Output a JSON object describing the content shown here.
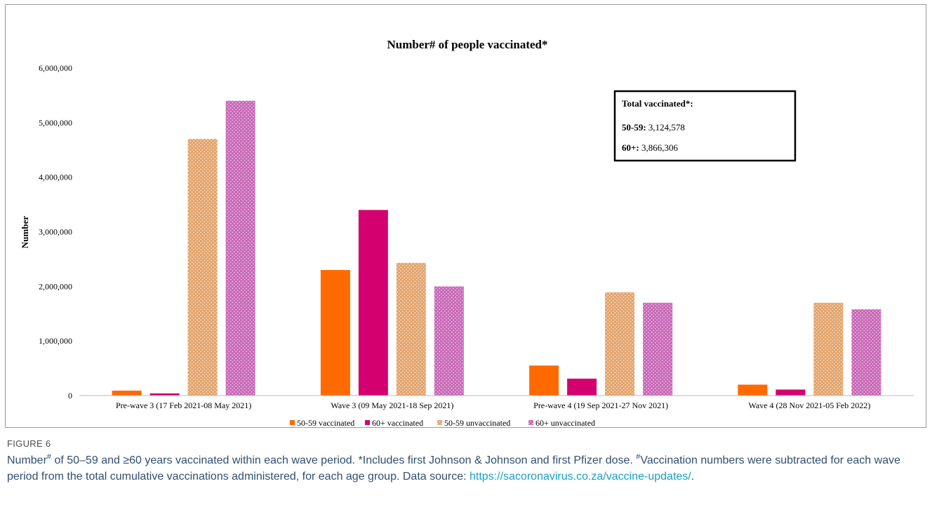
{
  "chart_data": {
    "type": "bar",
    "title": "Number# of people vaccinated*",
    "ylabel": "Number",
    "xlabel": "",
    "ylim": [
      0,
      6000000
    ],
    "yticks": [
      0,
      1000000,
      2000000,
      3000000,
      4000000,
      5000000,
      6000000
    ],
    "ytick_labels": [
      "0",
      "1,000,000",
      "2,000,000",
      "3,000,000",
      "4,000,000",
      "5,000,000",
      "6,000,000"
    ],
    "grid": false,
    "legend_position": "bottom",
    "categories": [
      "Pre-wave 3 (17 Feb 2021-08 May 2021)",
      "Wave 3 (09 May 2021-18 Sep 2021)",
      "Pre-wave 4 (19 Sep 2021-27 Nov 2021)",
      "Wave 4 (28 Nov 2021-05 Feb 2022)"
    ],
    "series": [
      {
        "name": "50-59 vaccinated",
        "values": [
          90000,
          2300000,
          550000,
          200000
        ],
        "color": "#ff6a00",
        "pattern": "solid"
      },
      {
        "name": "60+ vaccinated",
        "values": [
          40000,
          3400000,
          310000,
          110000
        ],
        "color": "#d4006f",
        "pattern": "solid"
      },
      {
        "name": "50-59 unvaccinated",
        "values": [
          4700000,
          2430000,
          1890000,
          1700000
        ],
        "color": "#e3a36b",
        "pattern": "dotted"
      },
      {
        "name": "60+ unvaccinated",
        "values": [
          5400000,
          2000000,
          1700000,
          1580000
        ],
        "color": "#c766b6",
        "pattern": "dotted"
      }
    ],
    "annotation_box": {
      "title": "Total vaccinated*:",
      "lines": [
        {
          "label": "50-59:",
          "value": " 3,124,578"
        },
        {
          "label": "60+:",
          "value": " 3,866,306"
        }
      ]
    }
  },
  "figure": {
    "label": "FIGURE 6",
    "caption_part1": "Number",
    "caption_sup1": "#",
    "caption_part2": " of 50–59 and ≥60 years vaccinated within each wave period. *Includes first Johnson & Johnson and first Pfizer dose. ",
    "caption_sup2": "#",
    "caption_part3": "Vaccination numbers were subtracted for each wave period from the total cumulative vaccinations administered, for each age group. Data source: ",
    "caption_link": "https://sacoronavirus.co.za/vaccine-updates/",
    "caption_end": "."
  }
}
